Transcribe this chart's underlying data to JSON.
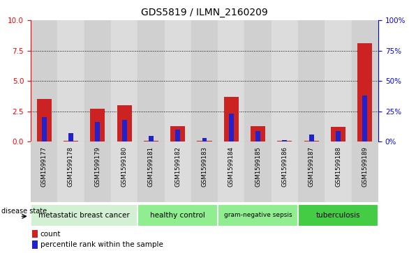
{
  "title": "GDS5819 / ILMN_2160209",
  "samples": [
    "GSM1599177",
    "GSM1599178",
    "GSM1599179",
    "GSM1599180",
    "GSM1599181",
    "GSM1599182",
    "GSM1599183",
    "GSM1599184",
    "GSM1599185",
    "GSM1599186",
    "GSM1599187",
    "GSM1599188",
    "GSM1599189"
  ],
  "count_values": [
    3.5,
    0.05,
    2.7,
    3.0,
    0.05,
    1.3,
    0.05,
    3.7,
    1.3,
    0.05,
    0.05,
    1.2,
    8.1
  ],
  "percentile_values": [
    20.0,
    7.0,
    16.0,
    18.0,
    5.0,
    10.0,
    3.0,
    23.0,
    9.0,
    1.5,
    6.0,
    9.0,
    38.0
  ],
  "disease_groups": [
    {
      "label": "metastatic breast cancer",
      "start": 0,
      "end": 3,
      "color": "#d4f0d4"
    },
    {
      "label": "healthy control",
      "start": 4,
      "end": 6,
      "color": "#90ee90"
    },
    {
      "label": "gram-negative sepsis",
      "start": 7,
      "end": 9,
      "color": "#90ee90"
    },
    {
      "label": "tuberculosis",
      "start": 10,
      "end": 12,
      "color": "#44cc44"
    }
  ],
  "ylim_left": [
    0,
    10
  ],
  "ylim_right": [
    0,
    100
  ],
  "yticks_left": [
    0,
    2.5,
    5,
    7.5,
    10
  ],
  "yticks_right": [
    0,
    25,
    50,
    75,
    100
  ],
  "bar_color_count": "#cc2222",
  "bar_color_percentile": "#2222cc",
  "count_bar_width": 0.55,
  "pct_bar_width": 0.18,
  "disease_state_label": "disease state",
  "legend_count": "count",
  "legend_percentile": "percentile rank within the sample",
  "col_colors": [
    "#d0d0d0",
    "#dcdcdc"
  ]
}
